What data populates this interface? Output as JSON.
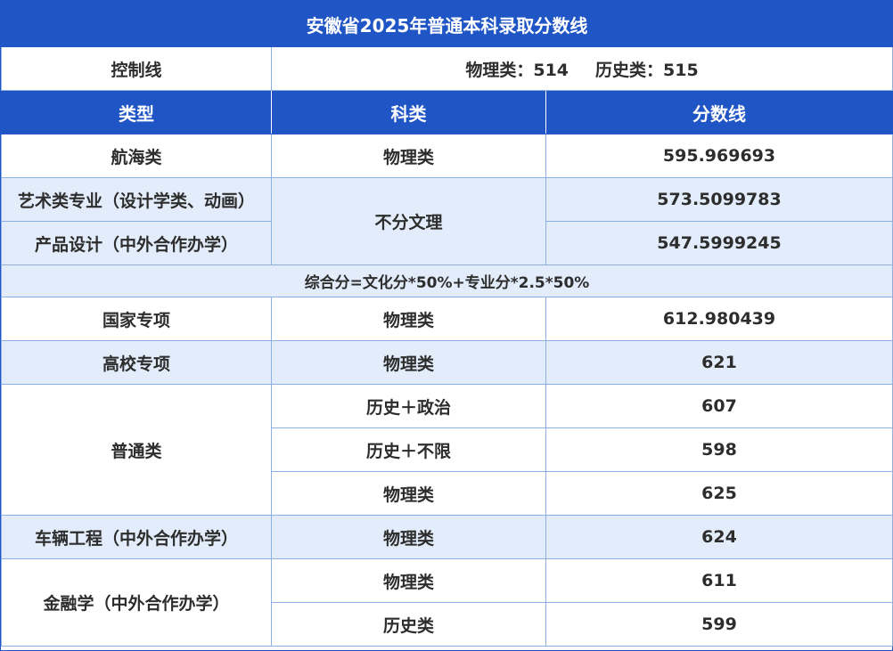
{
  "title": "安徽省2025年普通本科录取分数线",
  "control_line": {
    "label": "控制线",
    "physics": "物理类：514",
    "history": "历史类：515"
  },
  "headers": [
    "类型",
    "科类",
    "分数线"
  ],
  "rows": {
    "hanghai": {
      "type": "航海类",
      "subject": "物理类",
      "score": "595.969693"
    },
    "art": {
      "type": "艺术类专业（设计学类、动画）",
      "score": "573.5099783"
    },
    "product": {
      "type": "产品设计（中外合作办学）",
      "score": "547.5999245"
    },
    "art_subject": "不分文理",
    "formula": "综合分=文化分*50%+专业分*2.5*50%",
    "guojia": {
      "type": "国家专项",
      "subject": "物理类",
      "score": "612.980439"
    },
    "gaoxiao": {
      "type": "高校专项",
      "subject": "物理类",
      "score": "621"
    },
    "putong": {
      "type": "普通类",
      "items": [
        {
          "subject": "历史＋政治",
          "score": "607"
        },
        {
          "subject": "历史＋不限",
          "score": "598"
        },
        {
          "subject": "物理类",
          "score": "625"
        }
      ]
    },
    "cheliang": {
      "type": "车辆工程（中外合作办学）",
      "subject": "物理类",
      "score": "624"
    },
    "jinrong": {
      "type": "金融学（中外合作办学）",
      "items": [
        {
          "subject": "物理类",
          "score": "611"
        },
        {
          "subject": "历史类",
          "score": "599"
        }
      ]
    }
  },
  "colors": {
    "header_blue": "#1f55c4",
    "row_light_blue": "#e2ecfa",
    "border": "#8db0e4"
  }
}
